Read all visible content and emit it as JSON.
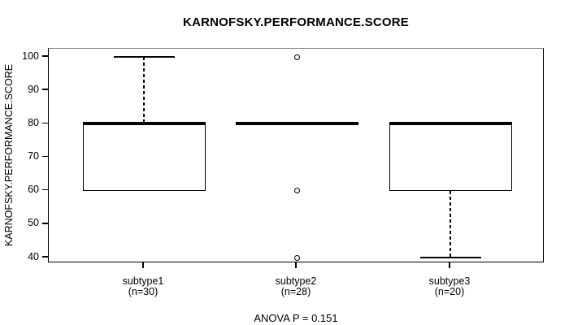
{
  "title": "KARNOFSKY.PERFORMANCE.SCORE",
  "y_axis": {
    "label": "KARNOFSKY.PERFORMANCE.SCORE",
    "ticks": [
      100,
      90,
      80,
      70,
      60,
      50,
      40
    ]
  },
  "footer": {
    "anova_text": "ANOVA P = 0.151"
  },
  "colors": {
    "line": "#000000",
    "frame_top": "#808080",
    "background": "#ffffff"
  },
  "chart_data": {
    "type": "boxplot",
    "title": "KARNOFSKY.PERFORMANCE.SCORE",
    "ylabel": "KARNOFSKY.PERFORMANCE.SCORE",
    "xlabel": "",
    "ylim": [
      38,
      103
    ],
    "y_ticks": [
      40,
      50,
      60,
      70,
      80,
      90,
      100
    ],
    "grid": false,
    "annotation": "ANOVA P = 0.151",
    "groups": [
      {
        "label": "subtype1",
        "n_label": "(n=30)",
        "n": 30,
        "median": 80,
        "q1": 60,
        "q3": 80,
        "whisker_low": 60,
        "whisker_high": 100,
        "outliers": []
      },
      {
        "label": "subtype2",
        "n_label": "(n=28)",
        "n": 28,
        "median": 80,
        "q1": 80,
        "q3": 80,
        "whisker_low": 80,
        "whisker_high": 80,
        "outliers": [
          100,
          60,
          40
        ]
      },
      {
        "label": "subtype3",
        "n_label": "(n=20)",
        "n": 20,
        "median": 80,
        "q1": 60,
        "q3": 80,
        "whisker_low": 40,
        "whisker_high": 80,
        "outliers": []
      }
    ]
  }
}
